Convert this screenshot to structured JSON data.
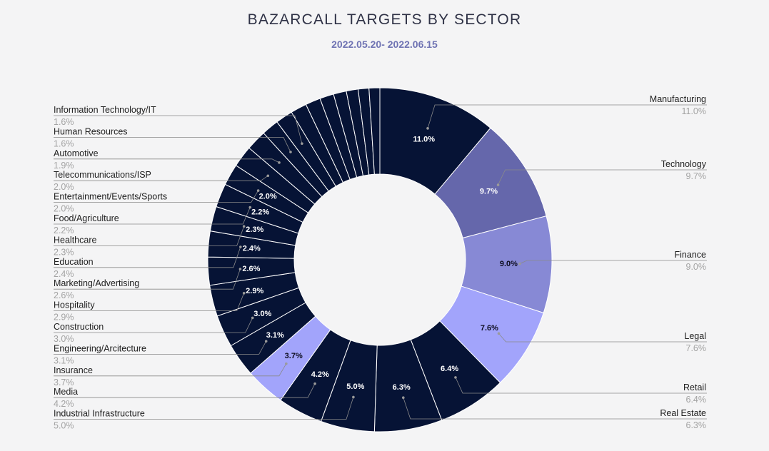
{
  "title": "BAZARCALL TARGETS BY SECTOR",
  "subtitle": "2022.05.20- 2022.06.15",
  "colors": {
    "navy": "#061335",
    "purple_dark": "#6567ab",
    "purple_mid": "#8789d5",
    "purple_light": "#a2a4fb"
  },
  "chart_data": {
    "type": "pie",
    "variant": "donut",
    "title": "BAZARCALL TARGETS BY SECTOR",
    "subtitle": "2022.05.20- 2022.06.15",
    "unit": "%",
    "slices": [
      {
        "label": "Manufacturing",
        "value": 11.0,
        "display": "11.0%",
        "color": "#061335",
        "callout": "right",
        "inner": true
      },
      {
        "label": "Technology",
        "value": 9.7,
        "display": "9.7%",
        "color": "#6567ab",
        "callout": "right",
        "inner": true
      },
      {
        "label": "Finance",
        "value": 9.0,
        "display": "9.0%",
        "color": "#8789d5",
        "callout": "right",
        "inner": true
      },
      {
        "label": "Legal",
        "value": 7.6,
        "display": "7.6%",
        "color": "#a2a4fb",
        "callout": "right",
        "inner": true
      },
      {
        "label": "Retail",
        "value": 6.4,
        "display": "6.4%",
        "color": "#061335",
        "callout": "right",
        "inner": true
      },
      {
        "label": "Real Estate",
        "value": 6.3,
        "display": "6.3%",
        "color": "#061335",
        "callout": "right",
        "inner": true
      },
      {
        "label": "Industrial Infrastructure",
        "value": 5.0,
        "display": "5.0%",
        "color": "#061335",
        "callout": "left",
        "inner": true
      },
      {
        "label": "Media",
        "value": 4.2,
        "display": "4.2%",
        "color": "#061335",
        "callout": "left",
        "inner": true
      },
      {
        "label": "Insurance",
        "value": 3.7,
        "display": "3.7%",
        "color": "#a2a4fb",
        "callout": "left",
        "inner": true
      },
      {
        "label": "Engineering/Arcitecture",
        "value": 3.1,
        "display": "3.1%",
        "color": "#061335",
        "callout": "left",
        "inner": true
      },
      {
        "label": "Construction",
        "value": 3.0,
        "display": "3.0%",
        "color": "#061335",
        "callout": "left",
        "inner": true
      },
      {
        "label": "Hospitality",
        "value": 2.9,
        "display": "2.9%",
        "color": "#061335",
        "callout": "left",
        "inner": true
      },
      {
        "label": "Marketing/Advertising",
        "value": 2.6,
        "display": "2.6%",
        "color": "#061335",
        "callout": "left",
        "inner": true
      },
      {
        "label": "Education",
        "value": 2.4,
        "display": "2.4%",
        "color": "#061335",
        "callout": "left",
        "inner": true
      },
      {
        "label": "Healthcare",
        "value": 2.3,
        "display": "2.3%",
        "color": "#061335",
        "callout": "left",
        "inner": true
      },
      {
        "label": "Food/Agriculture",
        "value": 2.2,
        "display": "2.2%",
        "color": "#061335",
        "callout": "left",
        "inner": true
      },
      {
        "label": "Entertainment/Events/Sports",
        "value": 2.0,
        "display": "2.0%",
        "color": "#061335",
        "callout": "left",
        "inner": true
      },
      {
        "label": "Telecommunications/ISP",
        "value": 2.0,
        "display": "2.0%",
        "color": "#061335",
        "callout": "left",
        "inner": false
      },
      {
        "label": "Automotive",
        "value": 1.9,
        "display": "1.9%",
        "color": "#061335",
        "callout": "left",
        "inner": false
      },
      {
        "label": "Human Resources",
        "value": 1.6,
        "display": "1.6%",
        "color": "#061335",
        "callout": "left",
        "inner": false
      },
      {
        "label": "Information Technology/IT",
        "value": 1.6,
        "display": "1.6%",
        "color": "#061335",
        "callout": "left",
        "inner": false
      },
      {
        "value": 1.5,
        "color": "#061335"
      },
      {
        "value": 1.4,
        "color": "#061335"
      },
      {
        "value": 1.3,
        "color": "#061335"
      },
      {
        "value": 1.2,
        "color": "#061335"
      },
      {
        "value": 1.1,
        "color": "#061335"
      },
      {
        "value": 1.0,
        "color": "#061335"
      },
      {
        "value": 1.0,
        "color": "#061335"
      }
    ]
  }
}
